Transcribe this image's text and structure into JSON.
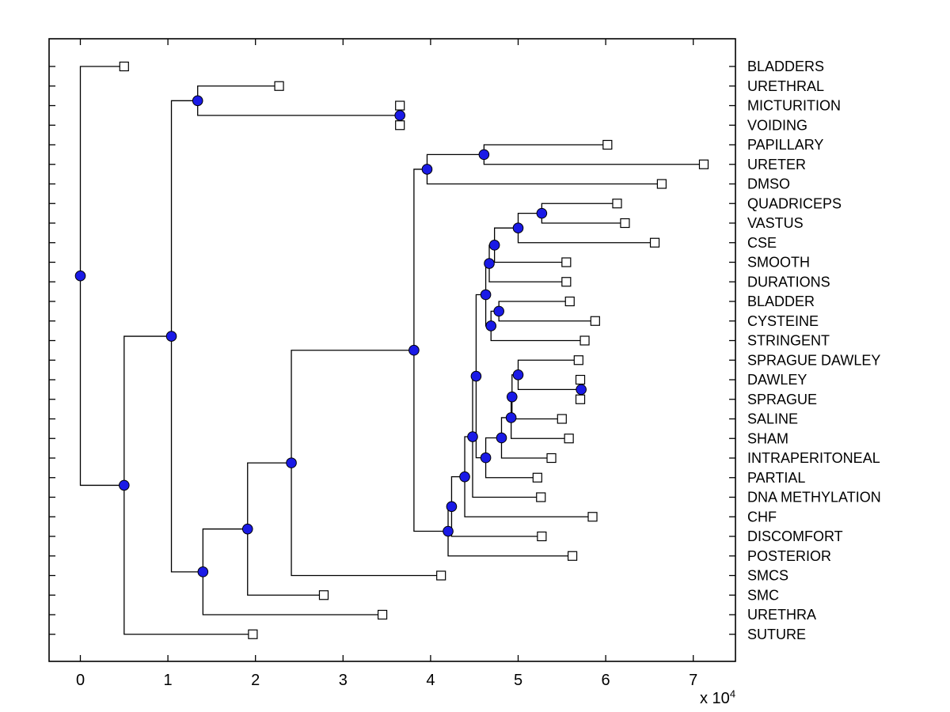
{
  "figure": {
    "colors": {
      "node_fill": "#1a1ae6",
      "marker_stroke": "#000000",
      "line": "#000000",
      "leaf_fill": "#ffffff",
      "background": "#ffffff"
    }
  },
  "chart_data": {
    "type": "dendrogram",
    "orientation": "left-to-right",
    "title": "",
    "x_axis": {
      "tick_labels": [
        "0",
        "1",
        "2",
        "3",
        "4",
        "5",
        "6",
        "7"
      ],
      "tick_values": [
        0,
        1,
        2,
        3,
        4,
        5,
        6,
        7
      ],
      "multiplier_text": "x 10",
      "multiplier_exponent": "4",
      "unit_multiplier": 10000,
      "range": [
        -0.36,
        7.48
      ]
    },
    "leaves": [
      {
        "label": "BLADDERS",
        "x": 0.5
      },
      {
        "label": "URETHRAL",
        "x": 2.27
      },
      {
        "label": "MICTURITION",
        "x": 3.65
      },
      {
        "label": "VOIDING",
        "x": 3.65
      },
      {
        "label": "PAPILLARY",
        "x": 6.02
      },
      {
        "label": "URETER",
        "x": 7.12
      },
      {
        "label": "DMSO",
        "x": 6.64
      },
      {
        "label": "QUADRICEPS",
        "x": 6.13
      },
      {
        "label": "VASTUS",
        "x": 6.22
      },
      {
        "label": "CSE",
        "x": 6.56
      },
      {
        "label": "SMOOTH",
        "x": 5.55
      },
      {
        "label": "DURATIONS",
        "x": 5.55
      },
      {
        "label": "BLADDER",
        "x": 5.59
      },
      {
        "label": "CYSTEINE",
        "x": 5.88
      },
      {
        "label": "STRINGENT",
        "x": 5.76
      },
      {
        "label": "SPRAGUE DAWLEY",
        "x": 5.69
      },
      {
        "label": "DAWLEY",
        "x": 5.71
      },
      {
        "label": "SPRAGUE",
        "x": 5.71
      },
      {
        "label": "SALINE",
        "x": 5.5
      },
      {
        "label": "SHAM",
        "x": 5.58
      },
      {
        "label": "INTRAPERITONEAL",
        "x": 5.38
      },
      {
        "label": "PARTIAL",
        "x": 5.22
      },
      {
        "label": "DNA METHYLATION",
        "x": 5.26
      },
      {
        "label": "CHF",
        "x": 5.85
      },
      {
        "label": "DISCOMFORT",
        "x": 5.27
      },
      {
        "label": "POSTERIOR",
        "x": 5.62
      },
      {
        "label": "SMCS",
        "x": 4.12
      },
      {
        "label": "SMC",
        "x": 2.78
      },
      {
        "label": "URETHRA",
        "x": 3.45
      },
      {
        "label": "SUTURE",
        "x": 1.97
      }
    ],
    "internal_nodes": [
      {
        "id": "n_mv",
        "x": 3.65,
        "children": [
          "MICTURITION",
          "VOIDING"
        ]
      },
      {
        "id": "n_ur",
        "x": 1.34,
        "children": [
          "URETHRAL",
          "n_mv"
        ]
      },
      {
        "id": "n_pu",
        "x": 4.61,
        "children": [
          "PAPILLARY",
          "URETER"
        ]
      },
      {
        "id": "n_pud",
        "x": 3.96,
        "children": [
          "n_pu",
          "DMSO"
        ]
      },
      {
        "id": "n_qv",
        "x": 5.27,
        "children": [
          "QUADRICEPS",
          "VASTUS"
        ]
      },
      {
        "id": "n_cse",
        "x": 5.0,
        "children": [
          "n_qv",
          "CSE"
        ]
      },
      {
        "id": "n_smoo",
        "x": 4.73,
        "children": [
          "n_cse",
          "SMOOTH"
        ]
      },
      {
        "id": "n_dur",
        "x": 4.67,
        "children": [
          "n_smoo",
          "DURATIONS"
        ]
      },
      {
        "id": "n_bc",
        "x": 4.78,
        "children": [
          "BLADDER",
          "CYSTEINE"
        ]
      },
      {
        "id": "n_str",
        "x": 4.69,
        "children": [
          "n_bc",
          "STRINGENT"
        ]
      },
      {
        "id": "n_q",
        "x": 4.63,
        "children": [
          "n_dur",
          "n_str"
        ]
      },
      {
        "id": "n_ds",
        "x": 5.72,
        "children": [
          "DAWLEY",
          "SPRAGUE"
        ]
      },
      {
        "id": "n_sd",
        "x": 5.0,
        "children": [
          "SPRAGUE DAWLEY",
          "n_ds"
        ]
      },
      {
        "id": "n_sal",
        "x": 4.93,
        "children": [
          "n_sd",
          "SALINE"
        ]
      },
      {
        "id": "n_sham",
        "x": 4.92,
        "children": [
          "n_sal",
          "SHAM"
        ]
      },
      {
        "id": "n_ip",
        "x": 4.81,
        "children": [
          "n_sham",
          "INTRAPERITONEAL"
        ]
      },
      {
        "id": "n_part",
        "x": 4.63,
        "children": [
          "n_ip",
          "PARTIAL"
        ]
      },
      {
        "id": "n_e",
        "x": 4.52,
        "children": [
          "n_q",
          "n_part"
        ]
      },
      {
        "id": "n_dna",
        "x": 4.48,
        "children": [
          "n_e",
          "DNA METHYLATION"
        ]
      },
      {
        "id": "n_chf",
        "x": 4.39,
        "children": [
          "n_dna",
          "CHF"
        ]
      },
      {
        "id": "n_disc",
        "x": 4.24,
        "children": [
          "n_chf",
          "DISCOMFORT"
        ]
      },
      {
        "id": "n_post",
        "x": 4.2,
        "children": [
          "n_disc",
          "POSTERIOR"
        ]
      },
      {
        "id": "n_j",
        "x": 3.81,
        "children": [
          "n_pud",
          "n_post"
        ]
      },
      {
        "id": "n_smcs",
        "x": 2.41,
        "children": [
          "n_j",
          "SMCS"
        ]
      },
      {
        "id": "n_smc",
        "x": 1.91,
        "children": [
          "n_smcs",
          "SMC"
        ]
      },
      {
        "id": "n_ureth",
        "x": 1.4,
        "children": [
          "n_smc",
          "URETHRA"
        ]
      },
      {
        "id": "n_m",
        "x": 1.04,
        "children": [
          "n_ur",
          "n_ureth"
        ]
      },
      {
        "id": "n_sut",
        "x": 0.5,
        "children": [
          "n_m",
          "SUTURE"
        ]
      },
      {
        "id": "root",
        "x": 0.0,
        "children": [
          "BLADDERS",
          "n_sut"
        ]
      }
    ]
  }
}
